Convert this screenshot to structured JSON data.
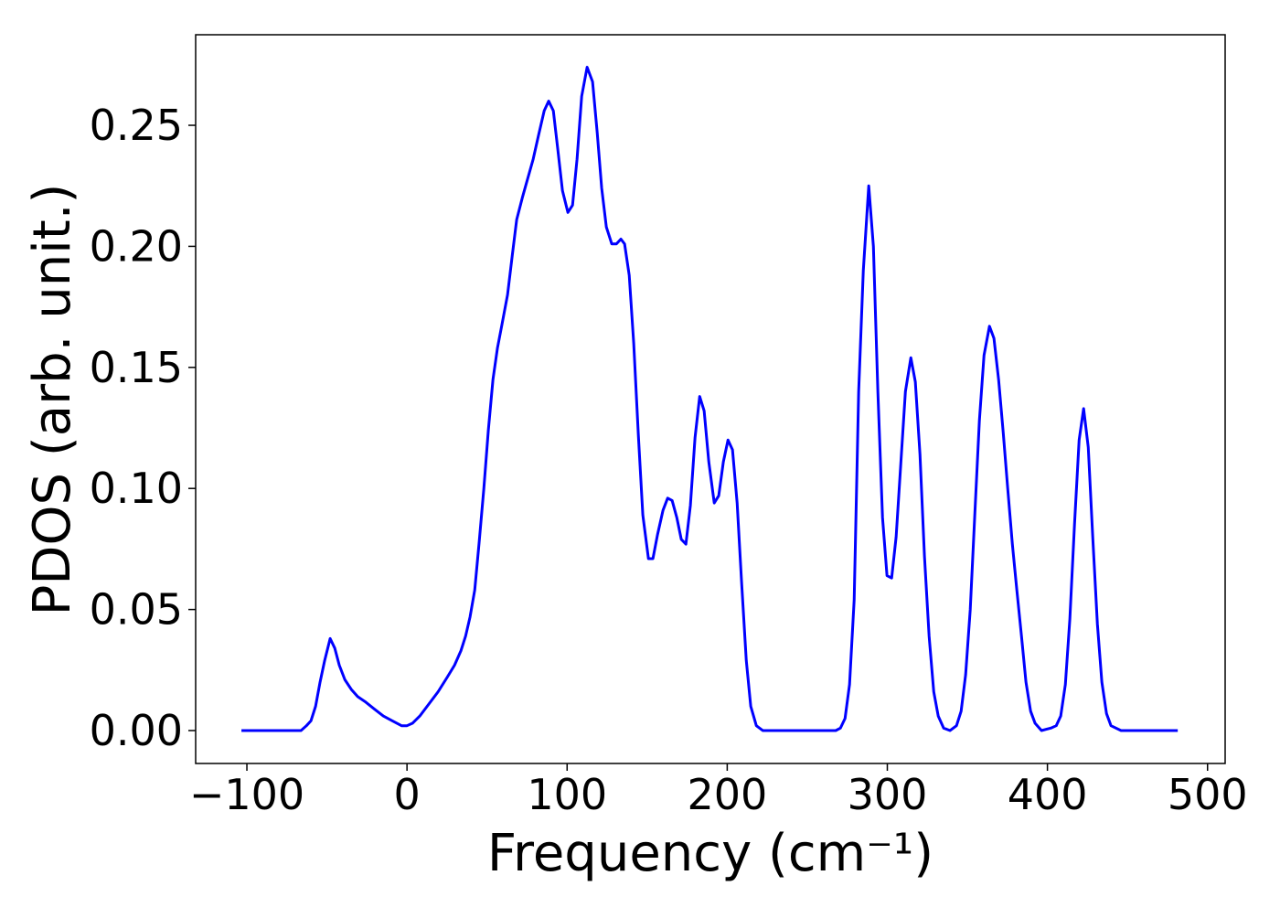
{
  "chart_data": {
    "type": "line",
    "xlabel": "Frequency (cm⁻¹)",
    "ylabel": "PDOS (arb. unit.)",
    "color": "#0000ff",
    "xlim": [
      -132,
      511
    ],
    "ylim": [
      -0.0136,
      0.2874
    ],
    "xticks": [
      {
        "value": -100,
        "label": "−100"
      },
      0,
      100,
      200,
      300,
      400,
      500
    ],
    "yticks": [
      {
        "value": 0,
        "label": "0.00"
      },
      0.05,
      {
        "value": 0.1,
        "label": "0.10"
      },
      0.15,
      {
        "value": 0.2,
        "label": "0.20"
      },
      0.25
    ],
    "x": [
      -103.4,
      -66.2,
      -62.8,
      -60.0,
      -57.1,
      -54.3,
      -51.4,
      -48.0,
      -45.1,
      -42.3,
      -38.8,
      -34.8,
      -30.8,
      -26.3,
      -20.6,
      -14.8,
      -9.1,
      -3.4,
      0,
      3.4,
      8.0,
      13.7,
      19.4,
      25.1,
      29.7,
      33.7,
      36.6,
      39.4,
      42.3,
      45.1,
      48.0,
      50.8,
      53.7,
      56.5,
      59.4,
      62.8,
      65.7,
      68.5,
      72.0,
      75.4,
      78.8,
      82.2,
      85.7,
      88.5,
      91.4,
      94.2,
      97.1,
      100.5,
      103.4,
      106.2,
      109.1,
      112.5,
      115.9,
      118.8,
      121.6,
      124.5,
      127.9,
      130.8,
      133.6,
      135.9,
      138.8,
      141.6,
      144.5,
      147.3,
      150.8,
      153.6,
      156.5,
      159.9,
      162.8,
      165.6,
      168.5,
      171.3,
      174.2,
      177.0,
      179.9,
      182.8,
      185.6,
      188.5,
      191.9,
      194.7,
      197.6,
      200.5,
      203.3,
      206.2,
      209.0,
      211.9,
      214.7,
      218.2,
      222.2,
      267.8,
      270.7,
      273.6,
      276.4,
      279.3,
      282.1,
      285.0,
      288.4,
      291.3,
      294.1,
      297.0,
      299.8,
      302.7,
      305.5,
      308.4,
      311.3,
      314.7,
      317.5,
      320.4,
      323.2,
      326.1,
      329.0,
      331.8,
      335.2,
      339.2,
      343.2,
      346.1,
      348.9,
      351.8,
      354.7,
      357.5,
      360.4,
      363.8,
      366.6,
      369.5,
      372.4,
      375.2,
      378.1,
      380.9,
      383.8,
      386.6,
      389.5,
      392.3,
      396.3,
      402.1,
      405.5,
      408.3,
      411.2,
      414.0,
      416.9,
      419.8,
      422.6,
      425.5,
      428.3,
      431.2,
      434.0,
      436.9,
      439.7,
      446.0,
      481.4
    ],
    "values": [
      0,
      0,
      0.002,
      0.004,
      0.01,
      0.02,
      0.029,
      0.038,
      0.034,
      0.027,
      0.021,
      0.017,
      0.014,
      0.012,
      0.009,
      0.006,
      0.004,
      0.002,
      0.002,
      0.003,
      0.006,
      0.011,
      0.016,
      0.022,
      0.027,
      0.033,
      0.039,
      0.047,
      0.058,
      0.078,
      0.1,
      0.124,
      0.145,
      0.158,
      0.168,
      0.18,
      0.196,
      0.211,
      0.22,
      0.228,
      0.236,
      0.246,
      0.256,
      0.26,
      0.256,
      0.24,
      0.223,
      0.214,
      0.217,
      0.236,
      0.262,
      0.274,
      0.268,
      0.247,
      0.224,
      0.208,
      0.201,
      0.201,
      0.203,
      0.201,
      0.188,
      0.16,
      0.122,
      0.089,
      0.071,
      0.071,
      0.081,
      0.091,
      0.096,
      0.095,
      0.088,
      0.079,
      0.077,
      0.093,
      0.121,
      0.138,
      0.132,
      0.111,
      0.094,
      0.097,
      0.111,
      0.12,
      0.116,
      0.094,
      0.061,
      0.029,
      0.01,
      0.002,
      0,
      0,
      0.001,
      0.005,
      0.019,
      0.054,
      0.14,
      0.19,
      0.225,
      0.2,
      0.14,
      0.088,
      0.064,
      0.063,
      0.08,
      0.11,
      0.14,
      0.154,
      0.144,
      0.114,
      0.072,
      0.039,
      0.016,
      0.006,
      0.001,
      0,
      0.002,
      0.008,
      0.023,
      0.05,
      0.09,
      0.128,
      0.155,
      0.167,
      0.162,
      0.145,
      0.123,
      0.1,
      0.077,
      0.058,
      0.039,
      0.02,
      0.008,
      0.003,
      0,
      0.001,
      0.002,
      0.006,
      0.019,
      0.046,
      0.085,
      0.12,
      0.133,
      0.117,
      0.08,
      0.044,
      0.02,
      0.007,
      0.002,
      0,
      0
    ]
  }
}
